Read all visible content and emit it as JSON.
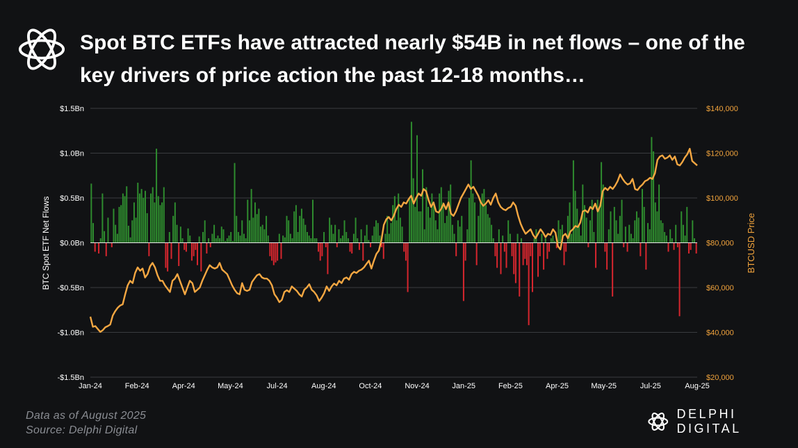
{
  "title": "Spot BTC ETFs have attracted nearly $54B in net flows – one of the key drivers of price action the past 12-18 months…",
  "footnote": {
    "data_as_of": "Data as of August 2025",
    "source": "Source: Delphi Digital"
  },
  "brand": {
    "name": "DELPHI DIGITAL",
    "logo_icon": "delphi-logo-icon"
  },
  "colors": {
    "background": "#111214",
    "inflow": "#2e8b2e",
    "outflow": "#d6262e",
    "price_line": "#f5a742",
    "grid": "#3a3c40",
    "axis_text": "#ffffff",
    "right_axis_text": "#f0a33c"
  },
  "chart_data": {
    "type": "bar+line",
    "title": "Spot BTC ETFs have attracted nearly $54B in net flows – one of the key drivers of price action the past 12-18 months…",
    "ylabel_left": "BTC Spot ETF Net Flows",
    "ylabel_right": "BTCUSD Price",
    "y_left_range": [
      -1.5,
      1.5
    ],
    "y_left_ticks": [
      -1.5,
      -1.0,
      -0.5,
      0.0,
      0.5,
      1.0,
      1.5
    ],
    "y_left_tick_labels": [
      "-$1.5Bn",
      "-$1.0Bn",
      "-$0.5Bn",
      "$0.0Bn",
      "$0.5Bn",
      "$1.0Bn",
      "$1.5Bn"
    ],
    "y_right_range": [
      20000,
      140000
    ],
    "y_right_ticks": [
      20000,
      40000,
      60000,
      80000,
      100000,
      120000,
      140000
    ],
    "y_right_tick_labels": [
      "$20,000",
      "$40,000",
      "$60,000",
      "$80,000",
      "$100,000",
      "$120,000",
      "$140,000"
    ],
    "x_tick_labels": [
      "Jan-24",
      "Feb-24",
      "Apr-24",
      "May-24",
      "Jul-24",
      "Aug-24",
      "Oct-24",
      "Nov-24",
      "Jan-25",
      "Feb-25",
      "Apr-25",
      "May-25",
      "Jul-25",
      "Aug-25"
    ],
    "grid": true,
    "series": [
      {
        "name": "BTC Spot ETF Net Flows ($Bn, daily)",
        "kind": "bar",
        "values": [
          0.66,
          0.22,
          -0.1,
          0.0,
          -0.12,
          0.05,
          0.55,
          0.13,
          -0.15,
          0.28,
          0.0,
          -0.05,
          0.38,
          0.2,
          0.1,
          0.4,
          0.42,
          0.55,
          0.52,
          0.63,
          0.19,
          0.06,
          0.25,
          0.45,
          0.28,
          0.67,
          0.55,
          0.6,
          0.5,
          0.58,
          0.33,
          -0.15,
          0.55,
          0.62,
          0.45,
          1.05,
          0.52,
          0.42,
          0.45,
          0.62,
          -0.28,
          -0.32,
          0.12,
          -0.18,
          0.3,
          0.45,
          0.2,
          -0.26,
          0.18,
          0.05,
          -0.08,
          -0.1,
          0.16,
          0.08,
          -0.2,
          -0.15,
          -0.08,
          -0.25,
          0.07,
          -0.32,
          0.12,
          0.25,
          -0.12,
          0.05,
          -0.05,
          0.1,
          0.2,
          0.05,
          0.08,
          0.05,
          0.18,
          0.15,
          0.02,
          0.05,
          0.08,
          0.12,
          0.02,
          0.89,
          0.3,
          0.12,
          0.08,
          0.25,
          0.1,
          0.05,
          0.48,
          0.25,
          0.6,
          0.28,
          0.45,
          0.32,
          0.38,
          0.18,
          0.2,
          0.15,
          0.3,
          0.08,
          -0.15,
          -0.2,
          -0.25,
          -0.22,
          -0.2,
          0.1,
          -0.18,
          0.08,
          0.06,
          0.3,
          0.25,
          0.1,
          0.05,
          0.35,
          0.42,
          0.12,
          0.3,
          0.38,
          0.27,
          0.2,
          0.12,
          0.08,
          0.05,
          0.48,
          0.05,
          0.05,
          -0.1,
          -0.2,
          -0.15,
          0.12,
          -0.05,
          -0.35,
          0.28,
          0.2,
          0.1,
          0.2,
          -0.05,
          0.15,
          0.05,
          0.08,
          0.25,
          0.12,
          0.05,
          -0.1,
          -0.12,
          0.1,
          0.28,
          0.05,
          -0.08,
          0.15,
          -0.2,
          0.08,
          0.2,
          0.03,
          -0.05,
          0.08,
          0.18,
          0.25,
          0.22,
          0.08,
          -0.05,
          -0.18,
          0.1,
          0.3,
          0.1,
          0.22,
          0.42,
          0.52,
          0.25,
          0.55,
          0.28,
          0.18,
          -0.1,
          -0.2,
          -0.55,
          0.5,
          1.35,
          0.72,
          0.4,
          1.2,
          0.35,
          0.35,
          0.82,
          0.15,
          0.62,
          0.4,
          0.28,
          0.55,
          0.45,
          0.25,
          0.15,
          0.55,
          0.62,
          0.45,
          0.22,
          0.3,
          0.58,
          0.65,
          0.2,
          0.1,
          -0.15,
          0.25,
          0.18,
          0.3,
          -0.65,
          -0.2,
          0.15,
          0.5,
          0.92,
          0.55,
          0.45,
          -0.25,
          0.3,
          0.45,
          0.55,
          0.6,
          0.42,
          0.32,
          0.28,
          0.2,
          0.05,
          -0.15,
          -0.28,
          0.15,
          -0.35,
          0.08,
          -0.1,
          -0.28,
          0.25,
          0.1,
          -0.15,
          -0.35,
          -0.45,
          0.1,
          -0.6,
          0.05,
          -0.25,
          -0.18,
          -0.25,
          -0.92,
          -0.15,
          -0.55,
          0.05,
          0.15,
          -0.38,
          -0.15,
          0.1,
          -0.3,
          0.05,
          -0.18,
          -0.1,
          0.05,
          0.08,
          0.02,
          -0.06,
          0.25,
          0.15,
          0.2,
          -0.25,
          -0.1,
          0.3,
          0.45,
          0.1,
          0.92,
          0.58,
          0.38,
          0.2,
          0.08,
          0.65,
          0.42,
          0.28,
          -0.05,
          0.25,
          0.48,
          0.12,
          -0.28,
          0.48,
          0.38,
          0.9,
          0.65,
          -0.1,
          -0.3,
          0.15,
          0.35,
          -0.6,
          0.4,
          0.25,
          0.1,
          0.3,
          0.48,
          -0.05,
          0.18,
          -0.1,
          0.2,
          0.1,
          0.05,
          0.25,
          0.35,
          0.28,
          -0.15,
          0.6,
          0.4,
          -0.3,
          0.22,
          0.15,
          1.18,
          1.02,
          0.45,
          0.35,
          0.65,
          0.25,
          0.22,
          0.12,
          0.08,
          -0.1,
          0.15,
          0.05,
          -0.08,
          0.2,
          -0.05,
          -0.82,
          0.35,
          0.2,
          0.08,
          0.4,
          -0.12,
          -0.08,
          0.25,
          0.05,
          -0.12
        ]
      },
      {
        "name": "BTCUSD Price ($)",
        "kind": "line",
        "values": [
          47000,
          42500,
          42800,
          41500,
          40200,
          41000,
          42300,
          42800,
          43500,
          47500,
          49500,
          51000,
          52000,
          52500,
          57000,
          61000,
          63000,
          62000,
          66500,
          69000,
          67500,
          68500,
          64500,
          66000,
          69500,
          71000,
          69000,
          65500,
          63000,
          63000,
          61000,
          59500,
          58000,
          63000,
          64000,
          66000,
          63000,
          60000,
          57000,
          60000,
          63000,
          62000,
          58000,
          59000,
          60000,
          63000,
          65500,
          68000,
          70000,
          69000,
          68500,
          69000,
          71000,
          68000,
          67000,
          66000,
          63500,
          61000,
          59000,
          57500,
          57000,
          62000,
          59000,
          58500,
          59000,
          62500,
          64000,
          65500,
          66000,
          64500,
          64000,
          64000,
          63000,
          61000,
          57000,
          55500,
          53500,
          54500,
          58000,
          58800,
          58000,
          60500,
          59500,
          58500,
          57000,
          56000,
          59000,
          60000,
          61500,
          59000,
          58000,
          56500,
          54000,
          55500,
          57500,
          60500,
          58500,
          60500,
          61800,
          61000,
          63000,
          62000,
          64000,
          64500,
          63500,
          66000,
          67000,
          66500,
          67500,
          68000,
          69000,
          70500,
          72000,
          68500,
          72000,
          75000,
          76500,
          81000,
          88000,
          90500,
          91500,
          90000,
          92000,
          95000,
          97000,
          96000,
          98000,
          97500,
          99500,
          101000,
          97500,
          100000,
          102000,
          101000,
          104000,
          103000,
          99000,
          96000,
          98000,
          94000,
          93500,
          95000,
          97500,
          95000,
          98000,
          93000,
          92000,
          94000,
          97000,
          100000,
          102000,
          104000,
          106000,
          104000,
          105000,
          103000,
          101000,
          98000,
          96500,
          97500,
          99000,
          97000,
          100000,
          102000,
          98000,
          96000,
          95000,
          94500,
          95500,
          96000,
          98000,
          96500,
          92000,
          88500,
          86000,
          84000,
          85000,
          86000,
          83500,
          82000,
          84000,
          86000,
          84500,
          82500,
          84000,
          83500,
          86000,
          84500,
          78500,
          77000,
          83000,
          84000,
          82000,
          85000,
          86000,
          87500,
          87000,
          89000,
          94000,
          94500,
          93500,
          96000,
          95000,
          97500,
          94000,
          96500,
          103000,
          104500,
          103500,
          105000,
          104000,
          105500,
          107500,
          110500,
          108500,
          107000,
          106000,
          106500,
          108500,
          104000,
          103500,
          105000,
          106000,
          107500,
          108000,
          109000,
          108500,
          111000,
          117000,
          118500,
          119000,
          117500,
          118000,
          119000,
          117000,
          118500,
          115000,
          114500,
          116000,
          118000,
          119500,
          122000,
          116500,
          115500,
          114500
        ]
      }
    ]
  }
}
